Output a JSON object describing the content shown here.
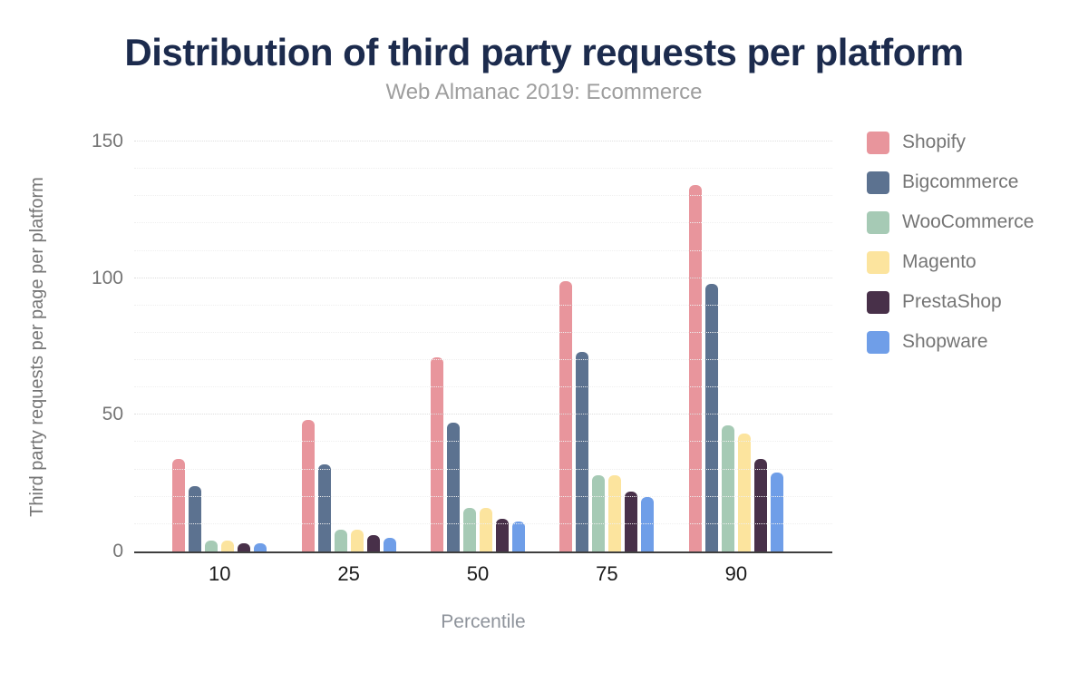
{
  "header": {
    "title": "Distribution of third party requests per platform",
    "subtitle": "Web Almanac 2019: Ecommerce"
  },
  "chart_data": {
    "type": "bar",
    "title": "Distribution of third party requests per platform",
    "subtitle": "Web Almanac 2019: Ecommerce",
    "xlabel": "Percentile",
    "ylabel": "Third party requests per page per platform",
    "categories": [
      "10",
      "25",
      "50",
      "75",
      "90"
    ],
    "series": [
      {
        "name": "Shopify",
        "color": "#e8959c",
        "values": [
          34,
          48,
          71,
          99,
          134
        ]
      },
      {
        "name": "Bigcommerce",
        "color": "#5c7290",
        "values": [
          24,
          32,
          47,
          73,
          98
        ]
      },
      {
        "name": "WooCommerce",
        "color": "#a6cab5",
        "values": [
          4,
          8,
          16,
          28,
          46
        ]
      },
      {
        "name": "Magento",
        "color": "#fce49e",
        "values": [
          4,
          8,
          16,
          28,
          43
        ]
      },
      {
        "name": "PrestaShop",
        "color": "#483049",
        "values": [
          3,
          6,
          12,
          22,
          34
        ]
      },
      {
        "name": "Shopware",
        "color": "#6f9ee8",
        "values": [
          3,
          5,
          11,
          20,
          29
        ]
      }
    ],
    "ylim": [
      0,
      150
    ],
    "yticks": [
      0,
      50,
      100,
      150
    ],
    "grid_step": 10,
    "grid": "horizontal dotted lines every 10, darker at 50/100/150",
    "legend_position": "right",
    "colors": {
      "title": "#1c2b4d",
      "subtitle": "#9e9e9e",
      "axis_line": "#3f3f3f",
      "tick_label": "#757575",
      "category_label": "#1a1a1a",
      "background": "#ffffff"
    }
  }
}
